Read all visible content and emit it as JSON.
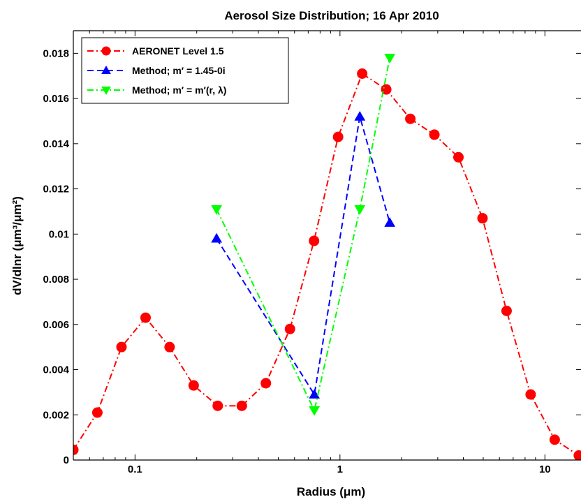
{
  "chart_data": {
    "type": "line",
    "title": "Aerosol Size Distribution; 16 Apr 2010",
    "xlabel": "Radius (μm)",
    "ylabel": "dV/dlnr (μm³/μm²)",
    "xscale": "log",
    "xlim": [
      0.05,
      15
    ],
    "ylim": [
      0,
      0.019
    ],
    "xticks": [
      0.1,
      1,
      10
    ],
    "xtick_labels": [
      "0.1",
      "1",
      "10"
    ],
    "yticks": [
      0,
      0.002,
      0.004,
      0.006,
      0.008,
      0.01,
      0.012,
      0.014,
      0.016,
      0.018
    ],
    "ytick_labels": [
      "0",
      "0.002",
      "0.004",
      "0.006",
      "0.008",
      "0.01",
      "0.012",
      "0.014",
      "0.016",
      "0.018"
    ],
    "grid": false,
    "legend_position": "top-left",
    "series": [
      {
        "name": "AERONET Level 1.5",
        "color": "#ff0000",
        "line_style": "dash-dot",
        "marker": "circle",
        "x": [
          0.05,
          0.0655,
          0.0859,
          0.1126,
          0.1475,
          0.1933,
          0.2533,
          0.332,
          0.4351,
          0.5702,
          0.7473,
          0.9793,
          1.2834,
          1.6819,
          2.2042,
          2.8886,
          3.7856,
          4.9611,
          6.5016,
          8.5204,
          11.1662,
          14.6336
        ],
        "y": [
          0.00045,
          0.0021,
          0.005,
          0.0063,
          0.005,
          0.0033,
          0.0024,
          0.0024,
          0.0034,
          0.0058,
          0.0097,
          0.0143,
          0.0171,
          0.0164,
          0.0151,
          0.0144,
          0.0134,
          0.0107,
          0.0066,
          0.0029,
          0.0009,
          0.0002
        ]
      },
      {
        "name": "Method; m′ = 1.45-0i",
        "color": "#0000ff",
        "line_style": "dashed",
        "marker": "triangle-up",
        "x": [
          0.25,
          0.75,
          1.25,
          1.75
        ],
        "y": [
          0.0098,
          0.0029,
          0.0152,
          0.0105
        ]
      },
      {
        "name": "Method; m′ = m′(r, λ)",
        "color": "#00ff00",
        "line_style": "dash-dot",
        "marker": "triangle-down",
        "x": [
          0.25,
          0.75,
          1.25,
          1.75
        ],
        "y": [
          0.0111,
          0.0022,
          0.0111,
          0.0178
        ]
      }
    ]
  }
}
